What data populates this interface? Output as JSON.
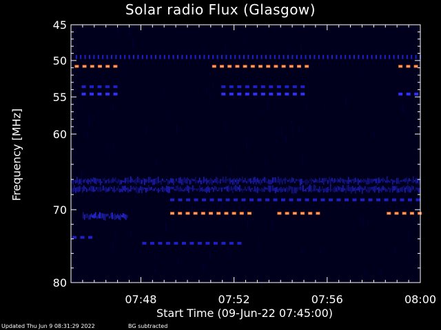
{
  "chart_data": {
    "type": "heatmap",
    "title": "Solar radio Flux (Glasgow)",
    "xlabel": "Start Time (09-Jun-22 07:45:00)",
    "ylabel": "Frequency [MHz]",
    "x_ticks": [
      "07:48",
      "07:52",
      "07:56",
      "08:00"
    ],
    "x_tick_minutes": [
      3,
      7,
      11,
      15
    ],
    "xlim_minutes": [
      0,
      15
    ],
    "y_ticks": [
      45,
      50,
      55,
      60,
      70,
      80
    ],
    "ylim": [
      45,
      80
    ],
    "colors": {
      "background": "#000000",
      "low": "#000030",
      "mid": "#2020c8",
      "bright": "#3030ff",
      "hot": "#ff7030",
      "peak": "#ffb070"
    },
    "features": [
      {
        "freq": 49.6,
        "t_start": 0.2,
        "t_end": 15,
        "level": "mid",
        "pattern": "ticks"
      },
      {
        "freq": 50.8,
        "t_start": 0.1,
        "t_end": 2.2,
        "level": "hot",
        "pattern": "dashes"
      },
      {
        "freq": 50.8,
        "t_start": 6.0,
        "t_end": 10.2,
        "level": "hot",
        "pattern": "dashes"
      },
      {
        "freq": 50.8,
        "t_start": 14.0,
        "t_end": 15.0,
        "level": "hot",
        "pattern": "dashes"
      },
      {
        "freq": 53.6,
        "t_start": 0.4,
        "t_end": 2.2,
        "level": "mid",
        "pattern": "dashes"
      },
      {
        "freq": 53.6,
        "t_start": 6.4,
        "t_end": 10.2,
        "level": "mid",
        "pattern": "dashes"
      },
      {
        "freq": 54.6,
        "t_start": 0.4,
        "t_end": 2.2,
        "level": "bright",
        "pattern": "dashes"
      },
      {
        "freq": 54.6,
        "t_start": 6.4,
        "t_end": 10.2,
        "level": "bright",
        "pattern": "dashes"
      },
      {
        "freq": 54.6,
        "t_start": 14.0,
        "t_end": 15.0,
        "level": "bright",
        "pattern": "dashes"
      },
      {
        "freq": 66.2,
        "t_start": 0.0,
        "t_end": 15.0,
        "level": "mid",
        "pattern": "noise"
      },
      {
        "freq": 67.3,
        "t_start": 0.0,
        "t_end": 15.0,
        "level": "mid",
        "pattern": "noise"
      },
      {
        "freq": 68.7,
        "t_start": 4.2,
        "t_end": 15.0,
        "level": "mid",
        "pattern": "dashes"
      },
      {
        "freq": 70.5,
        "t_start": 4.2,
        "t_end": 7.9,
        "level": "hot",
        "pattern": "dashes"
      },
      {
        "freq": 70.5,
        "t_start": 8.8,
        "t_end": 10.8,
        "level": "hot",
        "pattern": "dashes"
      },
      {
        "freq": 70.5,
        "t_start": 13.5,
        "t_end": 15.0,
        "level": "hot",
        "pattern": "dashes"
      },
      {
        "freq": 70.9,
        "t_start": 0.5,
        "t_end": 2.4,
        "level": "bright",
        "pattern": "noise"
      },
      {
        "freq": 73.8,
        "t_start": 0.0,
        "t_end": 1.0,
        "level": "mid",
        "pattern": "dashes"
      },
      {
        "freq": 74.6,
        "t_start": 3.0,
        "t_end": 7.5,
        "level": "mid",
        "pattern": "dashes"
      }
    ]
  },
  "footer": {
    "updated": "Updated Thu Jun  9 08:31:29 2022",
    "note": "BG subtracted"
  }
}
